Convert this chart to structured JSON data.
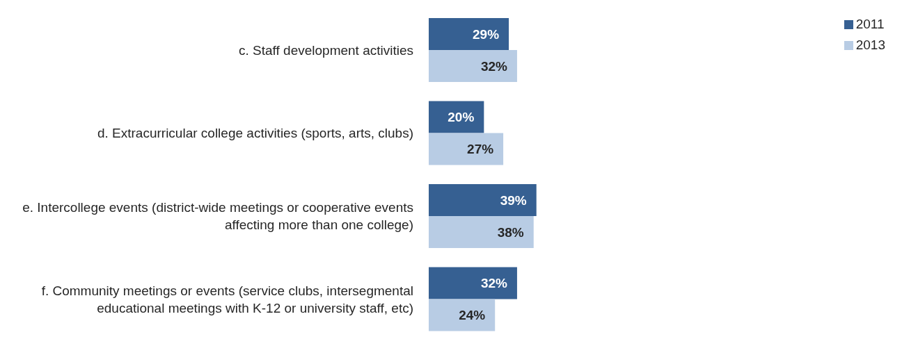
{
  "chart_data": {
    "type": "bar",
    "orientation": "horizontal",
    "categories": [
      "c. Staff development activities",
      "d. Extracurricular college activities (sports, arts, clubs)",
      "e. Intercollege events (district-wide meetings or cooperative events affecting more than one college)",
      "f. Community meetings or events (service clubs, intersegmental educational meetings with K-12 or university staff, etc)"
    ],
    "series": [
      {
        "name": "2011",
        "color": "#366092",
        "values": [
          29,
          20,
          39,
          32
        ],
        "value_labels": [
          "29%",
          "20%",
          "39%",
          "32%"
        ]
      },
      {
        "name": "2013",
        "color": "#b8cce4",
        "values": [
          32,
          27,
          38,
          24
        ],
        "value_labels": [
          "32%",
          "27%",
          "38%",
          "24%"
        ]
      }
    ],
    "legend": "top right",
    "grid": false
  }
}
